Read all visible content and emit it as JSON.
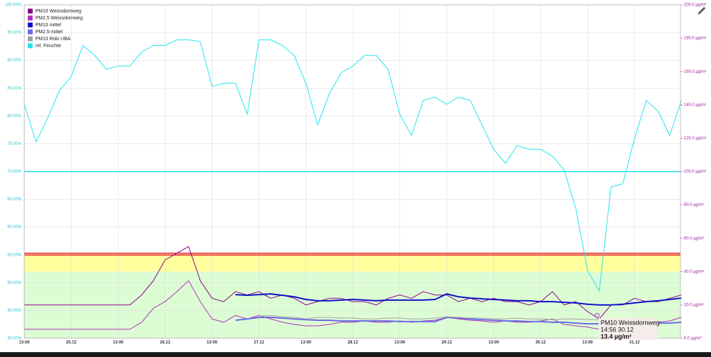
{
  "chart_data": {
    "type": "line",
    "x": [
      "13:00",
      null,
      null,
      null,
      "25.12",
      null,
      null,
      null,
      "13:00",
      null,
      null,
      null,
      "26.12",
      null,
      null,
      null,
      "13:00",
      null,
      null,
      null,
      "27.12",
      null,
      null,
      null,
      "13:00",
      null,
      null,
      null,
      "28.12",
      null,
      null,
      null,
      "13:00",
      null,
      null,
      null,
      "29.12",
      null,
      null,
      null,
      "13:00",
      null,
      null,
      null,
      "30.12",
      null,
      null,
      null,
      "13:00",
      null,
      null,
      null,
      "31.12",
      null,
      null,
      null,
      null
    ],
    "ylim": [
      40,
      100
    ],
    "yticks": [
      {
        "value": 40,
        "label": "40.00%"
      },
      {
        "value": 45,
        "label": "45.00%"
      },
      {
        "value": 50,
        "label": "50.00%"
      },
      {
        "value": 55,
        "label": "55.00%"
      },
      {
        "value": 60,
        "label": "60.00%"
      },
      {
        "value": 65,
        "label": "65.00%"
      },
      {
        "value": 70,
        "label": "70.00%"
      },
      {
        "value": 75,
        "label": "75.00%"
      },
      {
        "value": 80,
        "label": "80.00%"
      },
      {
        "value": 85,
        "label": "85.00%"
      },
      {
        "value": 90,
        "label": "90.00%"
      },
      {
        "value": 95,
        "label": "95.00%"
      },
      {
        "value": 100,
        "label": "100.00%"
      }
    ],
    "y2lim": [
      0,
      200
    ],
    "y2ticks": [
      {
        "value": 0,
        "label": "0.0 µg/m³"
      },
      {
        "value": 20,
        "label": "20.0 µg/m³"
      },
      {
        "value": 40,
        "label": "40.0 µg/m³"
      },
      {
        "value": 60,
        "label": "60.0 µg/m³"
      },
      {
        "value": 80,
        "label": "80.0 µg/m³"
      },
      {
        "value": 100,
        "label": "100.0 µg/m³"
      },
      {
        "value": 120,
        "label": "120.0 µg/m³"
      },
      {
        "value": 140,
        "label": "140.0 µg/m³"
      },
      {
        "value": 160,
        "label": "160.0 µg/m³"
      },
      {
        "value": 180,
        "label": "180.0 µg/m³"
      },
      {
        "value": 200,
        "label": "200.0 µg/m³"
      }
    ],
    "grid": true,
    "legend": "top-left",
    "bands": [
      {
        "from": 0,
        "to": 40,
        "color": "#dcfcd4",
        "axis": "y2"
      },
      {
        "from": 40,
        "to": 50,
        "color": "#ffff9e",
        "axis": "y2"
      }
    ],
    "reference_lines": [
      {
        "value": 50,
        "color": "#e01010",
        "axis": "y2"
      },
      {
        "value": 51,
        "color": "#e01010",
        "axis": "y2"
      },
      {
        "value": 70,
        "color": "#10e0e8",
        "axis": "y"
      }
    ],
    "series": [
      {
        "name": "PM10 Weissdornweg",
        "color": "#8a008a",
        "axis": "y2",
        "values": [
          20,
          20,
          20,
          20,
          20,
          20,
          20,
          20,
          20,
          20,
          26,
          34.5,
          47,
          51,
          55,
          34.5,
          24,
          22,
          28,
          26,
          28,
          24,
          26,
          24,
          20,
          22,
          24,
          24,
          22,
          22,
          20,
          24,
          26,
          24,
          28,
          26,
          26,
          22,
          24,
          22,
          24,
          22,
          22,
          20,
          22,
          28,
          20,
          22,
          16,
          11.6,
          20,
          20,
          24,
          22,
          22,
          24,
          26
        ]
      },
      {
        "name": "PM2.5 Weissdornweg",
        "color": "#b030b8",
        "axis": "y2",
        "values": [
          5.4,
          5.4,
          5.4,
          5.4,
          5.4,
          5.4,
          5.4,
          5.4,
          5.4,
          5.4,
          9.6,
          18,
          22,
          28,
          34.5,
          22,
          11.6,
          9.6,
          13.7,
          11.6,
          13.7,
          11.6,
          9.6,
          8.3,
          7.5,
          7.5,
          8.3,
          9.6,
          9.6,
          10.4,
          9.6,
          9.6,
          10.4,
          9.6,
          10.4,
          10.8,
          12.5,
          11.6,
          10.8,
          10.4,
          9.6,
          10.4,
          9.6,
          9.6,
          10.4,
          11.6,
          8.3,
          7.5,
          6.7,
          5.4,
          8.3,
          8.3,
          9.6,
          8.7,
          9.6,
          10.4,
          12.5
        ]
      },
      {
        "name": "PM10 mittel",
        "color": "#1010c8",
        "axis": "y2",
        "values": [
          null,
          null,
          null,
          null,
          null,
          null,
          null,
          null,
          null,
          null,
          null,
          null,
          null,
          null,
          null,
          null,
          null,
          null,
          26.2,
          25.8,
          26.2,
          26.6,
          25.8,
          24.9,
          23.3,
          22.5,
          22.5,
          22.9,
          23.3,
          22.9,
          22.5,
          22.9,
          22.9,
          22.9,
          22.9,
          23.3,
          26.6,
          24.9,
          24.1,
          23.7,
          23.3,
          22.9,
          22.5,
          22.5,
          22,
          22,
          21.6,
          21.2,
          20.4,
          20,
          20,
          20.4,
          21.2,
          22,
          22.5,
          23.3,
          24.1
        ]
      },
      {
        "name": "PM2.5 mittel",
        "color": "#6a6ae4",
        "axis": "y2",
        "values": [
          null,
          null,
          null,
          null,
          null,
          null,
          null,
          null,
          null,
          null,
          null,
          null,
          null,
          null,
          null,
          null,
          null,
          null,
          10.8,
          11.6,
          12.5,
          12.5,
          12.1,
          11.6,
          11.2,
          10.8,
          10.8,
          10.4,
          10.4,
          10.4,
          10.4,
          10.4,
          10,
          10,
          10,
          10,
          12.5,
          12.1,
          11.6,
          11.2,
          10.8,
          10.4,
          10.4,
          10,
          10,
          9.6,
          9.6,
          9.1,
          8.7,
          8.7,
          8.7,
          8.7,
          8.7,
          9.1,
          9.1,
          9.1,
          9.6
        ]
      },
      {
        "name": "PM10 Roki UBA",
        "color": "#a0a0a0",
        "axis": "y2",
        "values": [
          null,
          null,
          null,
          null,
          null,
          null,
          null,
          null,
          null,
          null,
          null,
          null,
          null,
          null,
          null,
          null,
          null,
          null,
          null,
          null,
          13.3,
          13.7,
          12.9,
          12.5,
          11.6,
          12.5,
          12.5,
          12.1,
          12.1,
          11.6,
          11.6,
          12.1,
          12.1,
          11.6,
          11.6,
          12.1,
          12.9,
          12.5,
          12.1,
          12.1,
          11.6,
          11.6,
          12.1,
          11.6,
          11.6,
          11.2,
          11.6,
          11.6,
          11.2,
          11.2,
          11.6,
          null,
          null,
          null,
          null,
          null,
          null
        ]
      },
      {
        "name": "rel. Feuchte",
        "color": "#22e4ec",
        "axis": "y",
        "values": [
          82.1,
          75.3,
          79.7,
          84.6,
          87.1,
          92.7,
          90.9,
          88.4,
          89,
          89,
          91.5,
          92.7,
          92.7,
          93.7,
          93.7,
          93.4,
          85.3,
          85.9,
          85.9,
          80.3,
          93.7,
          93.7,
          92.7,
          90.9,
          85.9,
          78.4,
          84,
          87.8,
          89,
          90.9,
          90.9,
          88.4,
          80.3,
          76.5,
          82.8,
          83.4,
          82.1,
          83.4,
          82.8,
          78.4,
          74,
          71.5,
          74.7,
          74,
          74,
          72.8,
          70.3,
          63.4,
          52.2,
          48.5,
          67.2,
          67.8,
          75.9,
          82.8,
          80.9,
          76.5,
          82.8
        ]
      }
    ],
    "tooltip": {
      "series": "PM10 Weissdornweg",
      "time": "14:56 30.12",
      "value": "13.4 µg/m³"
    }
  }
}
